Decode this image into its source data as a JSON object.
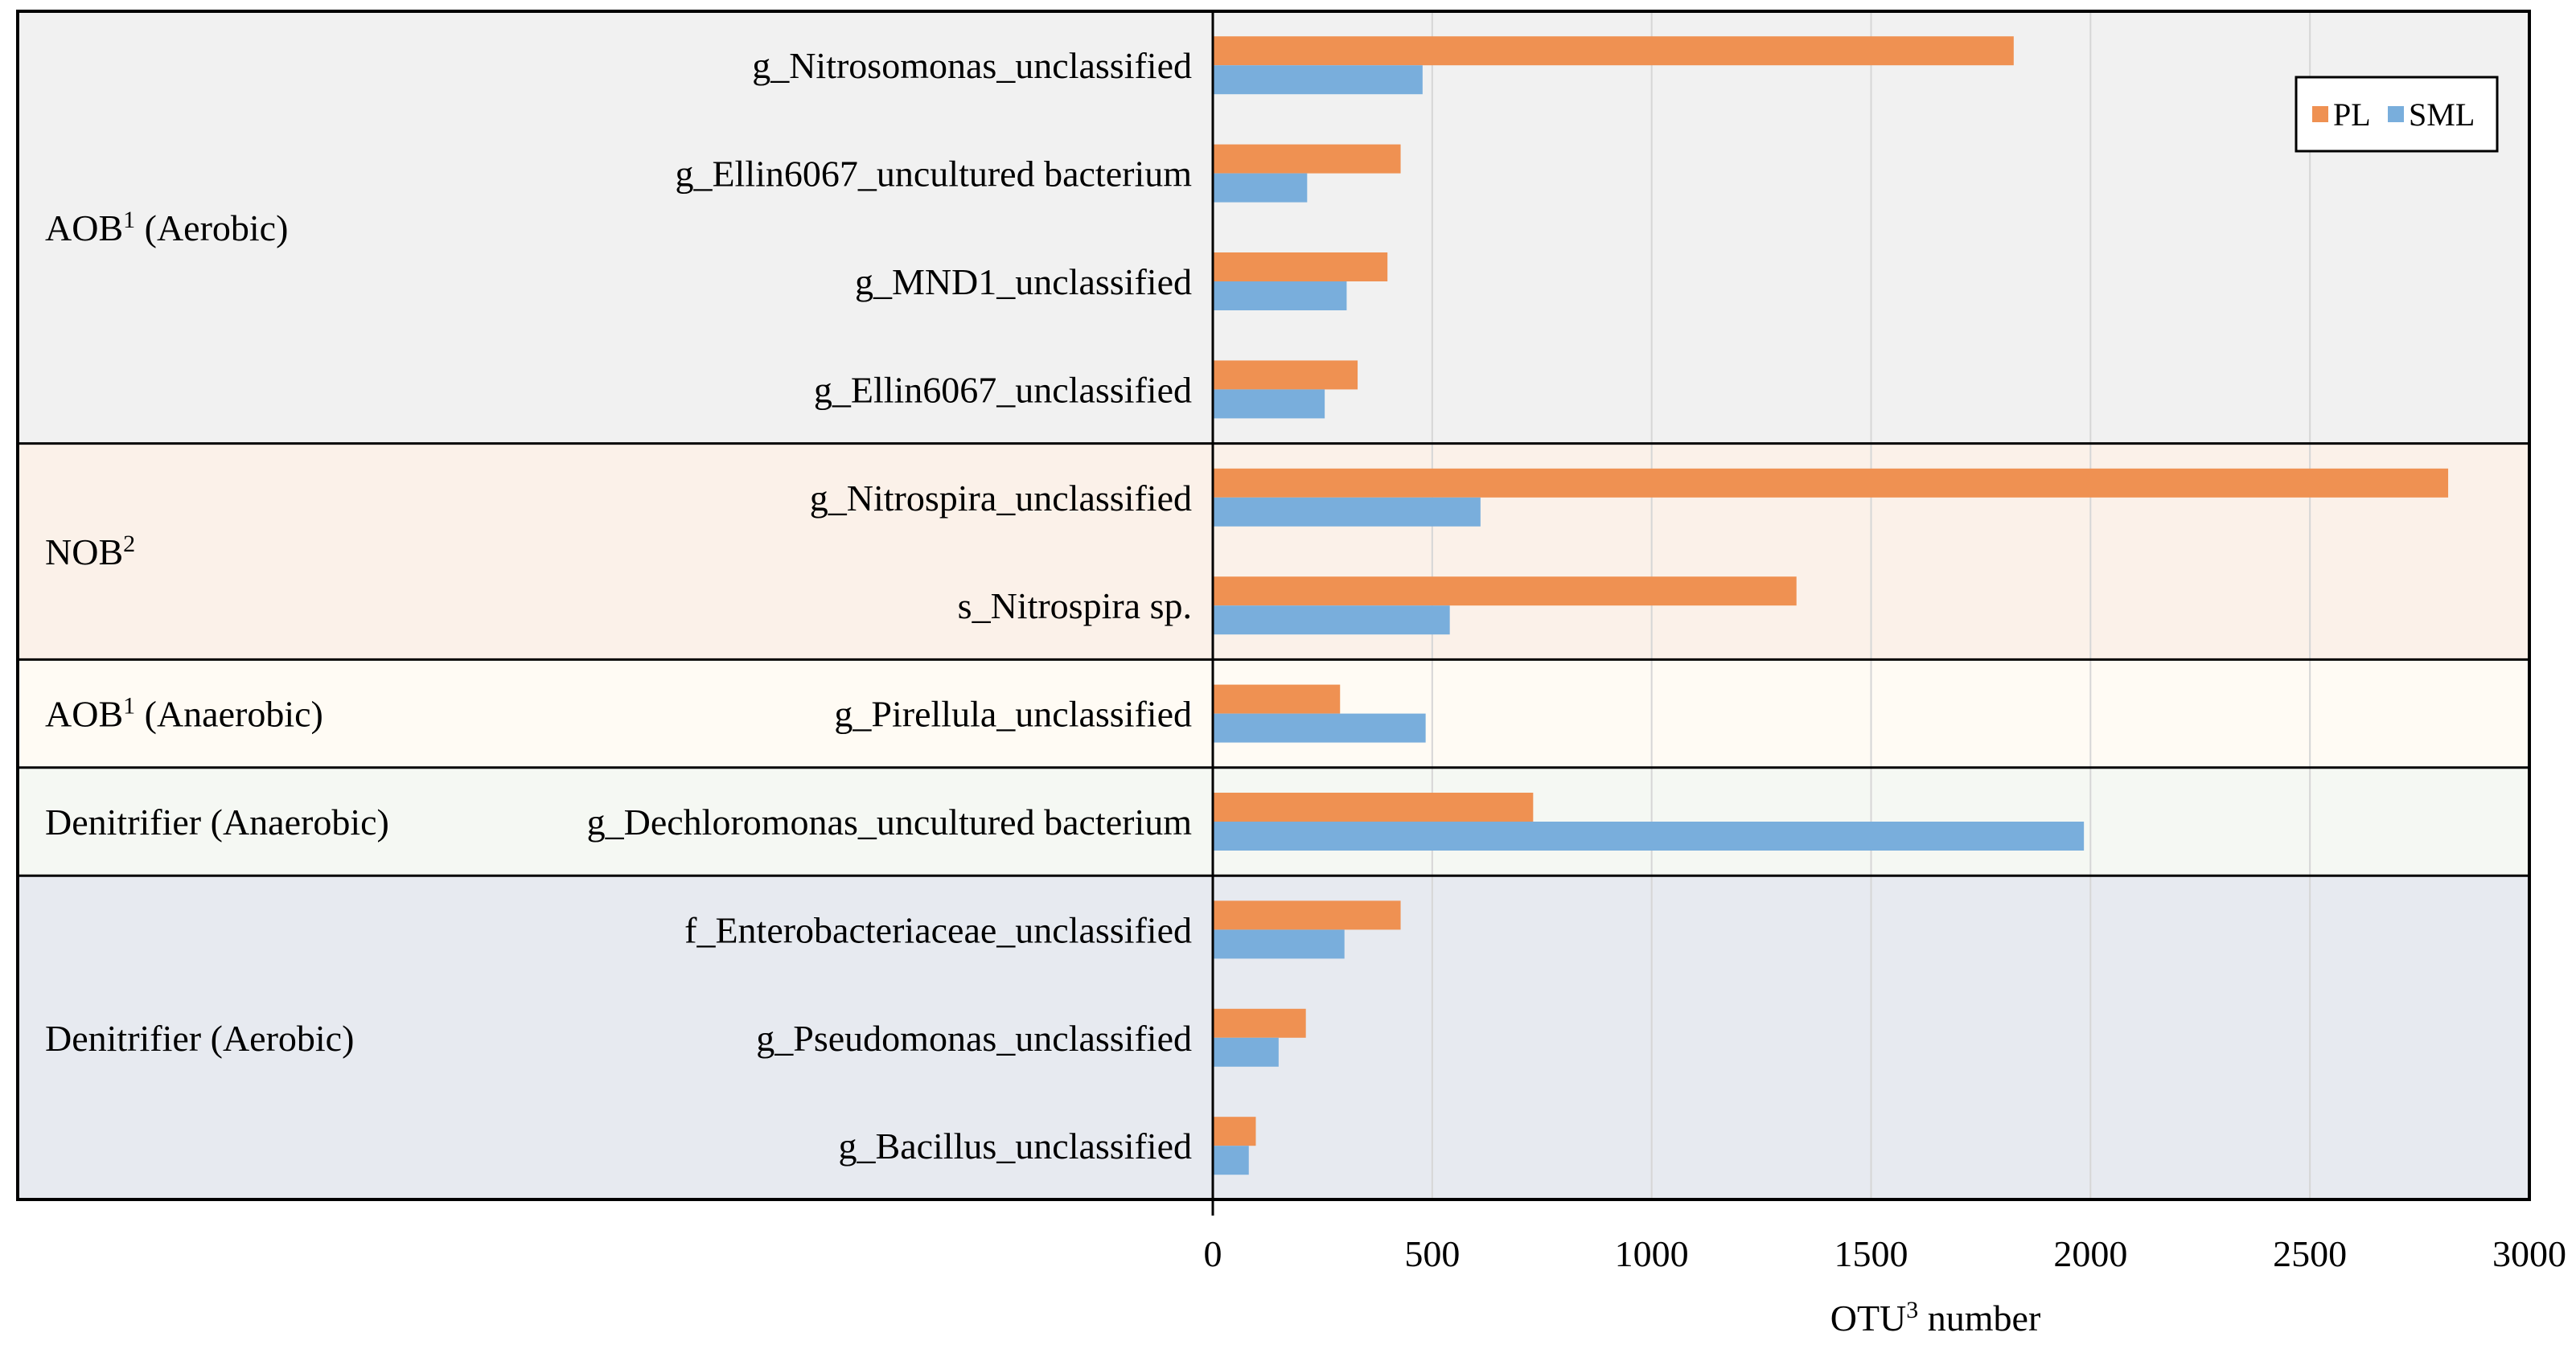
{
  "chart_data": {
    "type": "bar",
    "orientation": "horizontal",
    "title": "",
    "xlabel": "OTU³ number",
    "ylabel": "",
    "xlim": [
      0,
      3000
    ],
    "x_ticks": [
      0,
      500,
      1000,
      1500,
      2000,
      2500,
      3000
    ],
    "grid": true,
    "legend_position": "top-right",
    "colors": {
      "PL": "#ef9152",
      "SML": "#79aedc"
    },
    "legend": [
      {
        "name": "PL",
        "color": "#ef9152"
      },
      {
        "name": "SML",
        "color": "#79aedc"
      }
    ],
    "groups": [
      {
        "label": "AOB¹ (Aerobic)",
        "bg": "#f1f1f1",
        "categories": [
          {
            "name": "g_Nitrosomonas_unclassified",
            "PL": 1825,
            "SML": 478
          },
          {
            "name": "g_Ellin6067_uncultured bacterium",
            "PL": 428,
            "SML": 215
          },
          {
            "name": "g_MND1_unclassified",
            "PL": 398,
            "SML": 305
          },
          {
            "name": "g_Ellin6067_unclassified",
            "PL": 330,
            "SML": 255
          }
        ]
      },
      {
        "label": "NOB²",
        "bg": "#fbf1e9",
        "categories": [
          {
            "name": "g_Nitrospira_unclassified",
            "PL": 2815,
            "SML": 610
          },
          {
            "name": "s_Nitrospira sp.",
            "PL": 1330,
            "SML": 540
          }
        ]
      },
      {
        "label": "AOB¹ (Anaerobic)",
        "bg": "#fffbf4",
        "categories": [
          {
            "name": "g_Pirellula_unclassified",
            "PL": 290,
            "SML": 485
          }
        ]
      },
      {
        "label": "Denitrifier (Anaerobic)",
        "bg": "#f5f8f3",
        "categories": [
          {
            "name": "g_Dechloromonas_uncultured bacterium",
            "PL": 730,
            "SML": 1985
          }
        ]
      },
      {
        "label": "Denitrifier (Aerobic)",
        "bg": "#e7eaf0",
        "categories": [
          {
            "name": "f_Enterobacteriaceae_unclassified",
            "PL": 428,
            "SML": 300
          },
          {
            "name": "g_Pseudomonas_unclassified",
            "PL": 212,
            "SML": 150
          },
          {
            "name": "g_Bacillus_unclassified",
            "PL": 98,
            "SML": 82
          }
        ]
      }
    ]
  }
}
